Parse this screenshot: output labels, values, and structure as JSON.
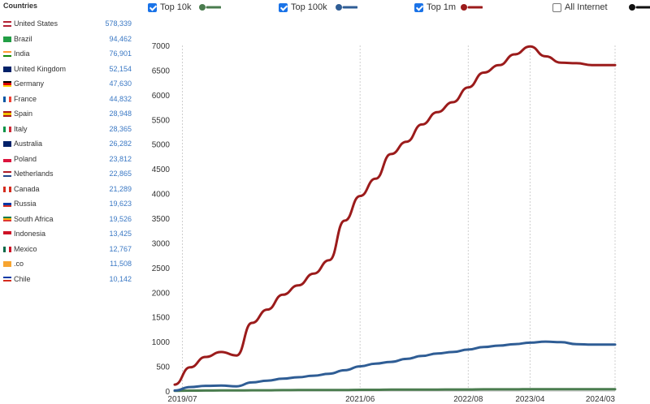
{
  "sidebar": {
    "title": "Countries",
    "countries": [
      {
        "name": "United States",
        "count": "578,339",
        "flag": "us"
      },
      {
        "name": "Brazil",
        "count": "94,462",
        "flag": "br"
      },
      {
        "name": "India",
        "count": "76,901",
        "flag": "in"
      },
      {
        "name": "United Kingdom",
        "count": "52,154",
        "flag": "gb"
      },
      {
        "name": "Germany",
        "count": "47,630",
        "flag": "de"
      },
      {
        "name": "France",
        "count": "44,832",
        "flag": "fr"
      },
      {
        "name": "Spain",
        "count": "28,948",
        "flag": "es"
      },
      {
        "name": "Italy",
        "count": "28,365",
        "flag": "it"
      },
      {
        "name": "Australia",
        "count": "26,282",
        "flag": "au"
      },
      {
        "name": "Poland",
        "count": "23,812",
        "flag": "pl"
      },
      {
        "name": "Netherlands",
        "count": "22,865",
        "flag": "nl"
      },
      {
        "name": "Canada",
        "count": "21,289",
        "flag": "ca"
      },
      {
        "name": "Russia",
        "count": "19,623",
        "flag": "ru"
      },
      {
        "name": "South Africa",
        "count": "19,526",
        "flag": "za"
      },
      {
        "name": "Indonesia",
        "count": "13,425",
        "flag": "id"
      },
      {
        "name": "Mexico",
        "count": "12,767",
        "flag": "mx"
      },
      {
        "name": ".co",
        "count": "11,508",
        "flag": "co"
      },
      {
        "name": "Chile",
        "count": "10,142",
        "flag": "cl"
      }
    ]
  },
  "legend": [
    {
      "label": "Top 10k",
      "checked": true,
      "color": "#4a7c4e"
    },
    {
      "label": "Top 100k",
      "checked": true,
      "color": "#2f5d95"
    },
    {
      "label": "Top 1m",
      "checked": true,
      "color": "#9b1b1b"
    },
    {
      "label": "All Internet",
      "checked": false,
      "color": "#111111"
    }
  ],
  "chart_data": {
    "type": "line",
    "x_tick_labels": [
      "2019/07",
      "2021/06",
      "2022/08",
      "2023/04",
      "2024/03"
    ],
    "x_tick_dates": [
      "2019-07",
      "2021-06",
      "2022-08",
      "2023-04",
      "2024-03"
    ],
    "xlim": [
      "2019-06",
      "2024-03"
    ],
    "ylim": [
      0,
      7000
    ],
    "y_ticks": [
      0,
      500,
      1000,
      1500,
      2000,
      2500,
      3000,
      3500,
      4000,
      4500,
      5000,
      5500,
      6000,
      6500,
      7000
    ],
    "grid": "vertical dotted at x ticks",
    "x": [
      "2019-06",
      "2019-08",
      "2019-10",
      "2019-12",
      "2020-02",
      "2020-04",
      "2020-06",
      "2020-08",
      "2020-10",
      "2020-12",
      "2021-02",
      "2021-04",
      "2021-06",
      "2021-08",
      "2021-10",
      "2021-12",
      "2022-02",
      "2022-04",
      "2022-06",
      "2022-08",
      "2022-10",
      "2022-12",
      "2023-02",
      "2023-04",
      "2023-06",
      "2023-08",
      "2023-10",
      "2023-12",
      "2024-01",
      "2024-03"
    ],
    "series": [
      {
        "name": "Top 1m",
        "color": "#9b1b1b",
        "values": [
          130,
          480,
          690,
          790,
          720,
          1380,
          1650,
          1950,
          2140,
          2380,
          2650,
          3450,
          3950,
          4300,
          4800,
          5050,
          5400,
          5650,
          5850,
          6150,
          6450,
          6600,
          6820,
          6980,
          6780,
          6650,
          6640,
          6600,
          6600,
          6600
        ]
      },
      {
        "name": "Top 100k",
        "color": "#2f5d95",
        "values": [
          10,
          80,
          105,
          110,
          95,
          175,
          210,
          250,
          280,
          310,
          350,
          420,
          500,
          555,
          590,
          650,
          710,
          760,
          790,
          840,
          890,
          920,
          950,
          980,
          1000,
          990,
          950,
          940,
          940,
          940
        ]
      },
      {
        "name": "Top 10k",
        "color": "#4a7c4e",
        "values": [
          5,
          8,
          10,
          12,
          12,
          15,
          15,
          18,
          20,
          20,
          22,
          22,
          25,
          25,
          28,
          28,
          30,
          30,
          32,
          32,
          35,
          35,
          35,
          38,
          38,
          38,
          38,
          38,
          38,
          38
        ]
      }
    ]
  }
}
